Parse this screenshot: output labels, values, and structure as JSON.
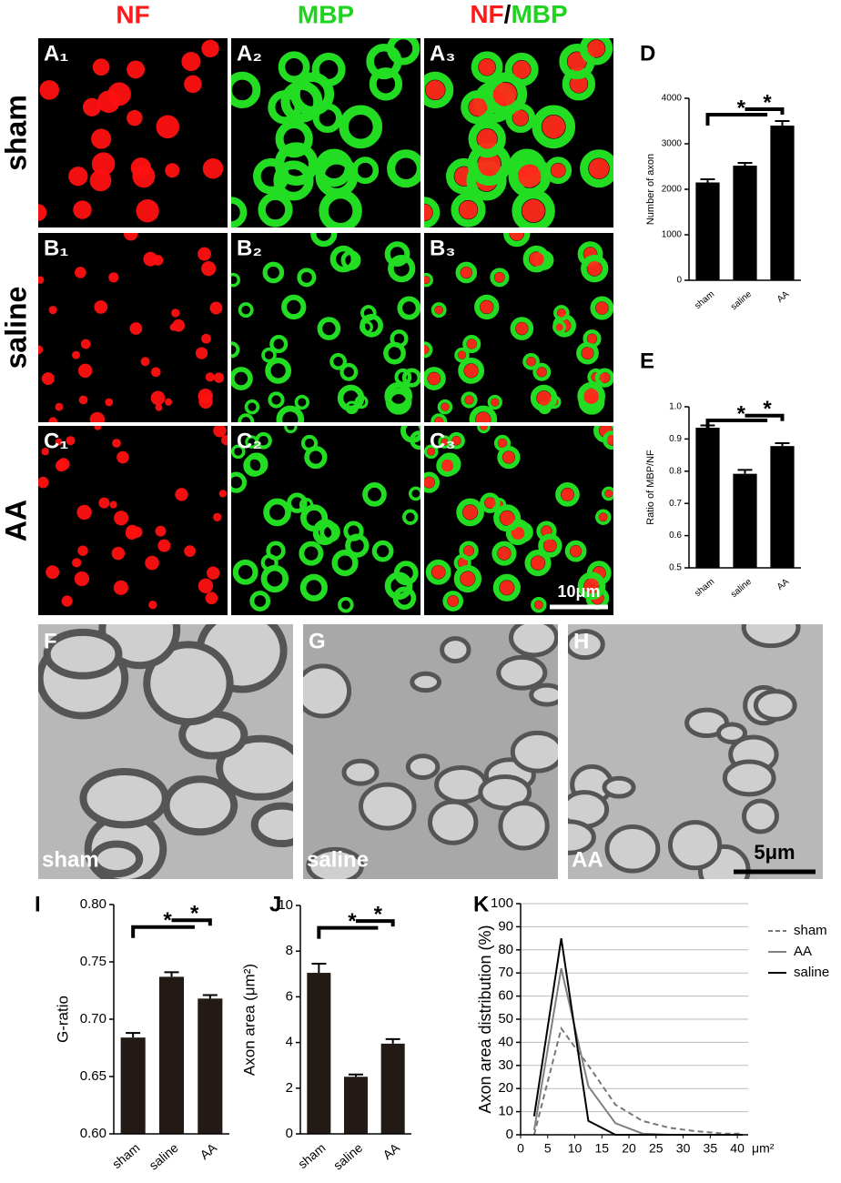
{
  "figure": {
    "column_headers": [
      "NF",
      "MBP"
    ],
    "merge_header": [
      "NF",
      "/",
      "MBP"
    ],
    "row_labels": [
      "sham",
      "saline",
      "AA"
    ],
    "micro_labels": [
      [
        "A₁",
        "A₂",
        "A₃"
      ],
      [
        "B₁",
        "B₂",
        "B₃"
      ],
      [
        "C₁",
        "C₂",
        "C₃"
      ]
    ],
    "scale_bar_top": "10μm",
    "em_labels": [
      "F",
      "G",
      "H"
    ],
    "em_captions": [
      "sham",
      "saline",
      "AA"
    ],
    "scale_bar_em": "5μm"
  },
  "chart_data": [
    {
      "type": "bar",
      "panel": "D",
      "ylabel": "Number of axon",
      "categories": [
        "sham",
        "saline",
        "AA"
      ],
      "values": [
        2150,
        2520,
        3400
      ],
      "errors": [
        70,
        60,
        100
      ],
      "color": "#000000",
      "ylim": [
        0,
        4000
      ],
      "yticks": [
        0,
        1000,
        2000,
        3000,
        4000
      ],
      "annotations": [
        "*",
        "*"
      ]
    },
    {
      "type": "bar",
      "panel": "E",
      "ylabel": "Ratio of MBP/NF",
      "categories": [
        "sham",
        "saline",
        "AA"
      ],
      "values": [
        0.935,
        0.792,
        0.878
      ],
      "errors": [
        0.007,
        0.012,
        0.009
      ],
      "color": "#000000",
      "ylim": [
        0.5,
        1.0
      ],
      "yticks": [
        0.5,
        0.6,
        0.7,
        0.8,
        0.9,
        {
          "value": 1.0,
          "label": "1.0"
        }
      ],
      "annotations": [
        "*",
        "*"
      ]
    },
    {
      "type": "bar",
      "panel": "I",
      "ylabel": "G-ratio",
      "categories": [
        "sham",
        "saline",
        "AA"
      ],
      "values": [
        0.684,
        0.737,
        0.718
      ],
      "errors": [
        0.004,
        0.004,
        0.003
      ],
      "color": "#231a15",
      "ylim": [
        0.6,
        0.8
      ],
      "yticks": [
        {
          "value": 0.6,
          "label": "0.60"
        },
        {
          "value": 0.65,
          "label": "0.65"
        },
        {
          "value": 0.7,
          "label": "0.70"
        },
        {
          "value": 0.75,
          "label": "0.75"
        },
        {
          "value": 0.8,
          "label": "0.80"
        }
      ],
      "annotations": [
        "*",
        "*"
      ]
    },
    {
      "type": "bar",
      "panel": "J",
      "ylabel": "Axon area (μm²)",
      "categories": [
        "sham",
        "saline",
        "AA"
      ],
      "values": [
        7.05,
        2.5,
        3.95
      ],
      "errors": [
        0.4,
        0.1,
        0.2
      ],
      "color": "#231a15",
      "ylim": [
        0,
        10
      ],
      "yticks": [
        0,
        2,
        4,
        6,
        8,
        10
      ],
      "annotations": [
        "*",
        "*"
      ]
    },
    {
      "type": "line",
      "panel": "K",
      "ylabel": "Axon area distribution (%)",
      "xunit": "μm²",
      "x": [
        2.5,
        7.5,
        12.5,
        17.5,
        22.5,
        27.5,
        32.5,
        37.5,
        41
      ],
      "series": [
        {
          "name": "sham",
          "color": "#777777",
          "dashed": true,
          "values": [
            0,
            46,
            30,
            13,
            6,
            3,
            1.5,
            0.5,
            0.5
          ]
        },
        {
          "name": "AA",
          "color": "#808080",
          "dashed": false,
          "values": [
            2,
            72,
            21,
            5,
            0.5,
            0,
            0,
            0,
            0
          ]
        },
        {
          "name": "saline",
          "color": "#000000",
          "dashed": false,
          "values": [
            8,
            85,
            6,
            0,
            0,
            0,
            0,
            0,
            0
          ]
        }
      ],
      "xlim": [
        0,
        42
      ],
      "xticks": [
        0,
        5,
        10,
        15,
        20,
        25,
        30,
        35,
        40
      ],
      "ylim": [
        0,
        100
      ],
      "yticks": [
        0,
        10,
        20,
        30,
        40,
        50,
        60,
        70,
        80,
        90,
        100
      ],
      "grid": true,
      "legend": "right"
    }
  ]
}
